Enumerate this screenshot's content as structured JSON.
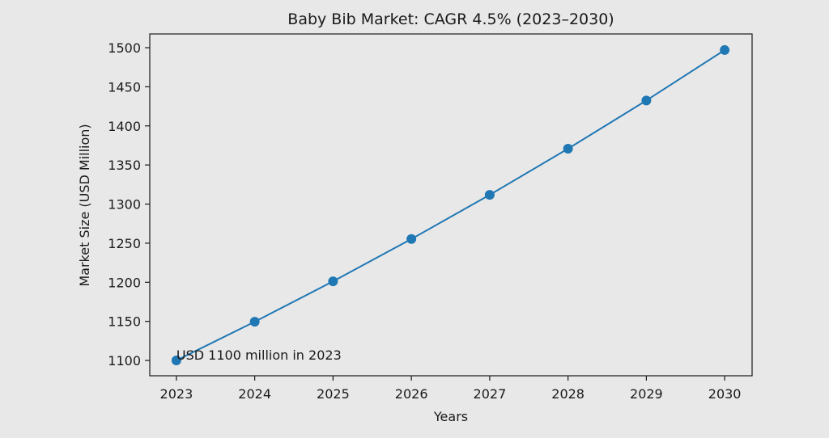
{
  "chart_data": {
    "type": "line",
    "title": "Baby Bib Market: CAGR 4.5% (2023–2030)",
    "xlabel": "Years",
    "ylabel": "Market Size (USD Million)",
    "x": [
      2023,
      2024,
      2025,
      2026,
      2027,
      2028,
      2029,
      2030
    ],
    "series": [
      {
        "values": [
          1100,
          1149.5,
          1201.2,
          1255.3,
          1311.8,
          1370.8,
          1432.5,
          1497.0
        ],
        "color": "#1f77b4",
        "marker": "circle"
      }
    ],
    "xticks": [
      "2023",
      "2024",
      "2025",
      "2026",
      "2027",
      "2028",
      "2029",
      "2030"
    ],
    "yticks": [
      "1100",
      "1150",
      "1200",
      "1250",
      "1300",
      "1350",
      "1400",
      "1450",
      "1500"
    ],
    "xlim": [
      2022.66,
      2030.35
    ],
    "ylim": [
      1080.4,
      1517.6
    ],
    "grid": false,
    "annotation": {
      "text": "USD 1100 million in 2023",
      "x": 2023,
      "y": 1100
    },
    "background": "#e8e8e8"
  }
}
